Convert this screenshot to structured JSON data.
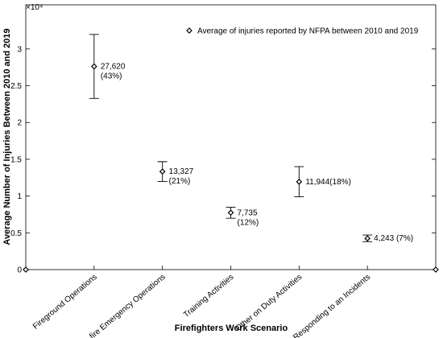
{
  "chart_data": {
    "type": "errorbar",
    "x_label": "Firefighters Work Scenario",
    "y_label": "Average Number of Injuries Between 2010 and 2019",
    "y_multiplier": "×10⁴",
    "categories": [
      null,
      "Fireground Operations",
      "Non-fire Emergency Operations",
      "Training Activities",
      "Other on Duty Activities",
      "Responding to an Incidents",
      null
    ],
    "series": [
      {
        "name": "Average of injuries reported by NFPA between 2010 and 2019",
        "color": "#000000",
        "values": [
          0,
          27620,
          13327,
          7735,
          11944,
          4243,
          0
        ],
        "errors": [
          null,
          4350,
          1350,
          750,
          2050,
          450,
          null
        ],
        "value_labels": [
          null,
          [
            "27,620",
            "(43%)"
          ],
          [
            "13,327",
            "(21%)"
          ],
          [
            "7,735",
            "(12%)"
          ],
          [
            "11,944(18%)"
          ],
          [
            "4,243 (7%)"
          ],
          null
        ]
      }
    ],
    "ylim": [
      0,
      36000
    ],
    "yticks": [
      0,
      {
        "value": 5000,
        "label": "0.5"
      },
      {
        "value": 10000,
        "label": "1"
      },
      {
        "value": 15000,
        "label": "1.5"
      },
      {
        "value": 20000,
        "label": "2"
      },
      {
        "value": 25000,
        "label": "2.5"
      },
      {
        "value": 30000,
        "label": "3"
      }
    ],
    "legend": "upper right",
    "grid": false
  }
}
